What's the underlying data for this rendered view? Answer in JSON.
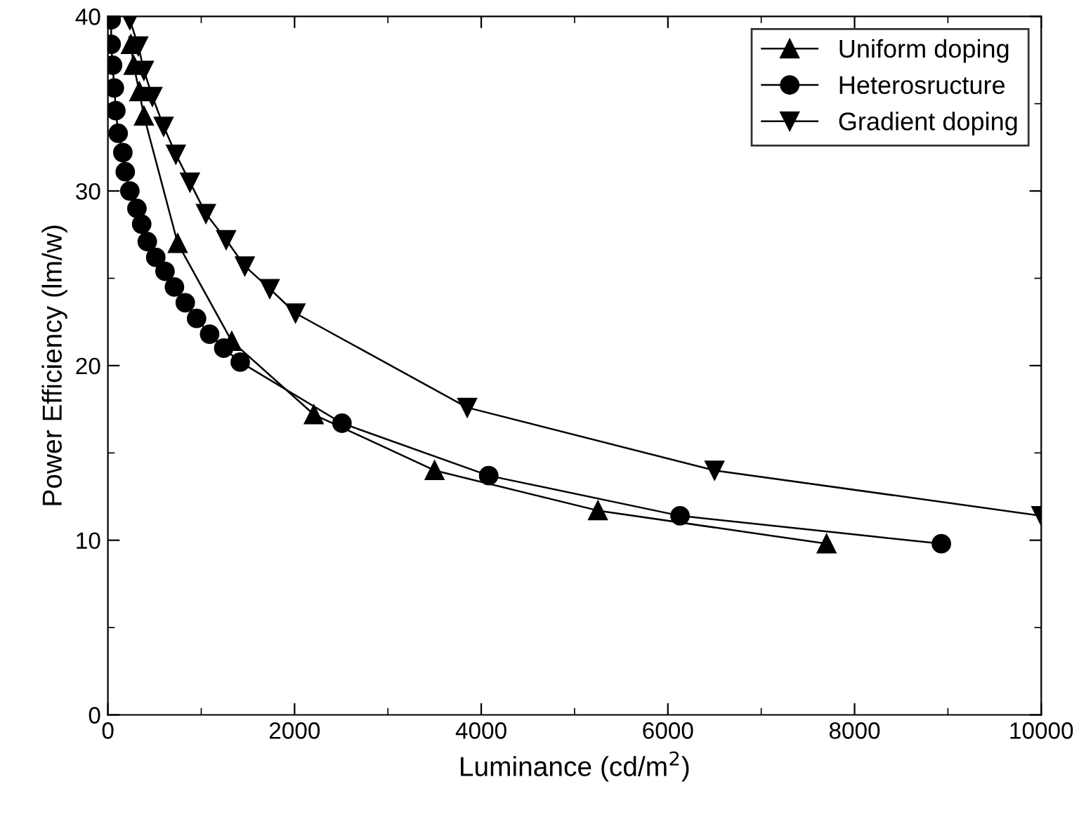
{
  "chart_data": {
    "type": "line",
    "xlabel": "Luminance (cd/m$^{2}$)",
    "ylabel": "Power Efficiency (lm/w)",
    "xlim": [
      0,
      10000
    ],
    "xticks": [
      0,
      2000,
      4000,
      6000,
      8000,
      10000
    ],
    "ylim": [
      0,
      40
    ],
    "yticks": [
      0,
      10,
      20,
      30,
      40
    ],
    "grid": false,
    "legend": "top right",
    "line_style": "solid",
    "series": [
      {
        "name": "Uniform doping",
        "color": "#000000",
        "marker": "triangle",
        "x": [
          246,
          276,
          336,
          386,
          748,
          1327,
          2206,
          3500,
          5250,
          7700
        ],
        "values": [
          38.4,
          37.2,
          35.7,
          34.3,
          27.0,
          21.4,
          17.2,
          14.0,
          11.7,
          9.8
        ]
      },
      {
        "name": "Heterosructure",
        "color": "#000000",
        "marker": "circle",
        "x": [
          35,
          35,
          50,
          69,
          85,
          110,
          160,
          186,
          235,
          311,
          362,
          422,
          513,
          612,
          713,
          829,
          950,
          1090,
          1241,
          1418,
          2508,
          4080,
          6130,
          8930
        ],
        "values": [
          39.8,
          38.4,
          37.2,
          35.9,
          34.6,
          33.3,
          32.2,
          31.1,
          30.0,
          29.0,
          28.1,
          27.1,
          26.2,
          25.4,
          24.5,
          23.6,
          22.7,
          21.8,
          21.0,
          20.2,
          16.7,
          13.7,
          11.4,
          9.8
        ]
      },
      {
        "name": "Gradient doping",
        "color": "#000000",
        "marker": "triangle_down",
        "x": [
          235,
          326,
          386,
          477,
          597,
          728,
          879,
          1050,
          1267,
          1467,
          1734,
          2010,
          3850,
          6500,
          10000
        ],
        "values": [
          39.8,
          38.3,
          36.9,
          35.4,
          33.7,
          32.1,
          30.5,
          28.7,
          27.2,
          25.7,
          24.4,
          23.0,
          17.6,
          14.0,
          11.4
        ]
      }
    ]
  }
}
